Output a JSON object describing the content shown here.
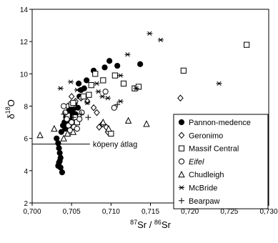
{
  "chart_data": {
    "type": "scatter",
    "title": "",
    "xlabel_parts": {
      "pre": "87",
      "base1": "Sr / ",
      "pre2": "86",
      "base2": "Sr"
    },
    "ylabel_parts": {
      "base": "δ",
      "sup": "18",
      "tail": "O"
    },
    "xlim": [
      0.7,
      0.73
    ],
    "ylim": [
      2,
      14
    ],
    "x_ticks": [
      {
        "value": 0.7,
        "label": "0,700"
      },
      {
        "value": 0.705,
        "label": "0,705"
      },
      {
        "value": 0.71,
        "label": "0,710"
      },
      {
        "value": 0.715,
        "label": "0,715"
      },
      {
        "value": 0.72,
        "label": "0,720"
      },
      {
        "value": 0.725,
        "label": "0,725"
      },
      {
        "value": 0.73,
        "label": "0,730"
      }
    ],
    "y_ticks": [
      {
        "value": 2,
        "label": "2"
      },
      {
        "value": 4,
        "label": "4"
      },
      {
        "value": 6,
        "label": "6"
      },
      {
        "value": 8,
        "label": "8"
      },
      {
        "value": 10,
        "label": "10"
      },
      {
        "value": 12,
        "label": "12"
      },
      {
        "value": 14,
        "label": "14"
      }
    ],
    "grid": false,
    "legend_position": "bottom-right",
    "reference_line": {
      "y": 5.65,
      "x_start": 0.7,
      "x_end": 0.7057,
      "label": "köpeny átlag"
    },
    "series": [
      {
        "name": "Pannon-medence",
        "marker": "filled-circle",
        "points": [
          [
            0.7031,
            6.0
          ],
          [
            0.7033,
            5.7
          ],
          [
            0.7034,
            5.4
          ],
          [
            0.7035,
            5.1
          ],
          [
            0.7036,
            4.8
          ],
          [
            0.7034,
            4.5
          ],
          [
            0.7036,
            4.2
          ],
          [
            0.7038,
            3.9
          ],
          [
            0.7033,
            4.3
          ],
          [
            0.7035,
            4.6
          ],
          [
            0.7037,
            6.4
          ],
          [
            0.7039,
            6.8
          ],
          [
            0.7041,
            7.0
          ],
          [
            0.7043,
            7.3
          ],
          [
            0.7045,
            7.6
          ],
          [
            0.7047,
            7.8
          ],
          [
            0.7049,
            8.0
          ],
          [
            0.705,
            7.5
          ],
          [
            0.7052,
            7.8
          ],
          [
            0.7054,
            8.2
          ],
          [
            0.7048,
            7.2
          ],
          [
            0.7046,
            6.9
          ],
          [
            0.7055,
            7.5
          ],
          [
            0.7058,
            7.9
          ],
          [
            0.706,
            8.6
          ],
          [
            0.7062,
            9.0
          ],
          [
            0.7059,
            9.4
          ],
          [
            0.7066,
            9.1
          ],
          [
            0.7069,
            9.6
          ],
          [
            0.7078,
            10.2
          ],
          [
            0.7092,
            10.4
          ],
          [
            0.7098,
            10.8
          ],
          [
            0.7108,
            10.5
          ],
          [
            0.7137,
            10.6
          ],
          [
            0.7044,
            7.1
          ],
          [
            0.7042,
            6.6
          ]
        ]
      },
      {
        "name": "Geronimo",
        "marker": "open-diamond",
        "points": [
          [
            0.7045,
            8.0
          ],
          [
            0.705,
            8.6
          ],
          [
            0.7055,
            8.3
          ],
          [
            0.7062,
            8.5
          ],
          [
            0.707,
            8.3
          ],
          [
            0.7078,
            7.9
          ],
          [
            0.7085,
            6.7
          ],
          [
            0.7089,
            6.9
          ],
          [
            0.7094,
            6.7
          ],
          [
            0.7096,
            6.4
          ],
          [
            0.7082,
            7.6
          ],
          [
            0.7188,
            8.5
          ]
        ]
      },
      {
        "name": "Massif Central",
        "marker": "open-square",
        "points": [
          [
            0.7045,
            7.4
          ],
          [
            0.705,
            8.1
          ],
          [
            0.7052,
            8.2
          ],
          [
            0.7054,
            7.3
          ],
          [
            0.7057,
            7.0
          ],
          [
            0.7065,
            8.6
          ],
          [
            0.7072,
            8.7
          ],
          [
            0.7075,
            9.3
          ],
          [
            0.708,
            10.0
          ],
          [
            0.709,
            9.6
          ],
          [
            0.7105,
            9.9
          ],
          [
            0.7116,
            9.4
          ],
          [
            0.713,
            9.1
          ],
          [
            0.7135,
            9.2
          ],
          [
            0.71,
            6.3
          ],
          [
            0.7192,
            10.2
          ],
          [
            0.7272,
            11.8
          ]
        ]
      },
      {
        "name": "Eifel",
        "marker": "open-circle",
        "points": [
          [
            0.704,
            8.0
          ],
          [
            0.7042,
            7.6
          ],
          [
            0.7044,
            7.2
          ],
          [
            0.7046,
            6.8
          ],
          [
            0.7048,
            6.5
          ],
          [
            0.705,
            7.0
          ],
          [
            0.7053,
            6.7
          ],
          [
            0.7057,
            6.6
          ],
          [
            0.706,
            7.2
          ],
          [
            0.7063,
            7.6
          ],
          [
            0.7093,
            8.9
          ],
          [
            0.7104,
            7.9
          ]
        ]
      },
      {
        "name": "Chudleigh",
        "marker": "open-triangle",
        "points": [
          [
            0.701,
            6.2
          ],
          [
            0.7028,
            6.6
          ],
          [
            0.704,
            6.0
          ],
          [
            0.7045,
            6.3
          ],
          [
            0.7052,
            6.4
          ],
          [
            0.709,
            7.0
          ],
          [
            0.7097,
            6.6
          ],
          [
            0.7122,
            7.1
          ],
          [
            0.7145,
            6.9
          ]
        ]
      },
      {
        "name": "McBride",
        "marker": "asterisk",
        "points": [
          [
            0.7036,
            9.1
          ],
          [
            0.7049,
            9.5
          ],
          [
            0.7057,
            9.0
          ],
          [
            0.707,
            8.2
          ],
          [
            0.7082,
            9.4
          ],
          [
            0.7084,
            8.9
          ],
          [
            0.7089,
            8.6
          ],
          [
            0.7096,
            8.5
          ],
          [
            0.7112,
            9.9
          ],
          [
            0.7121,
            11.2
          ],
          [
            0.7132,
            9.1
          ],
          [
            0.7149,
            12.5
          ],
          [
            0.7163,
            12.1
          ],
          [
            0.7237,
            9.4
          ],
          [
            0.7112,
            8.3
          ]
        ]
      },
      {
        "name": "Bearpaw",
        "marker": "plus",
        "points": [
          [
            0.704,
            7.5
          ],
          [
            0.7052,
            7.3
          ],
          [
            0.7062,
            7.5
          ],
          [
            0.7071,
            7.3
          ],
          [
            0.7108,
            8.1
          ]
        ]
      }
    ]
  }
}
